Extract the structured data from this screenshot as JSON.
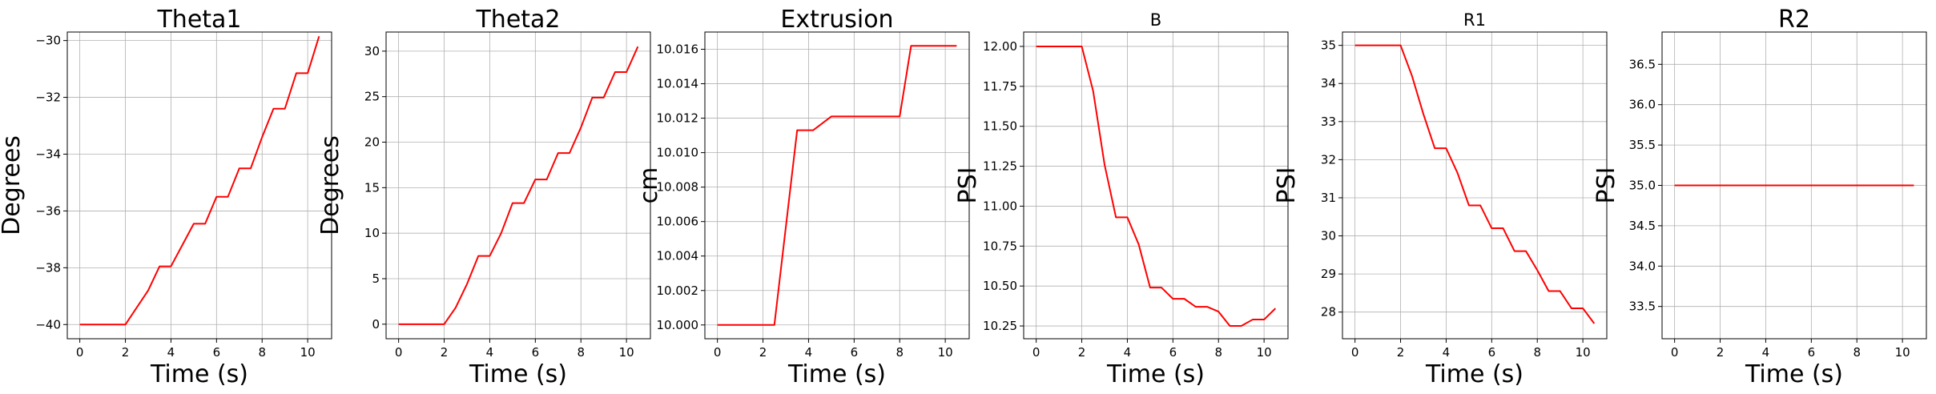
{
  "figure": {
    "background": "#ffffff",
    "line_color": "#ff0000",
    "grid": true
  },
  "chart_data": [
    {
      "type": "line",
      "title": "Theta1",
      "xlabel": "Time (s)",
      "ylabel": "Degrees",
      "xlim": [
        -0.55,
        11.05
      ],
      "ylim": [
        -40.5,
        -29.7
      ],
      "xticks": [
        0,
        2,
        4,
        6,
        8,
        10
      ],
      "xtick_labels": [
        "0",
        "2",
        "4",
        "6",
        "8",
        "10"
      ],
      "yticks": [
        -40,
        -38,
        -36,
        -34,
        -32,
        -30
      ],
      "ytick_labels": [
        "−40",
        "−38",
        "−36",
        "−34",
        "−32",
        "−30"
      ],
      "series": [
        {
          "color": "#ff0000",
          "x": [
            0,
            0.5,
            1,
            1.5,
            2,
            2.5,
            3,
            3.5,
            4,
            4.5,
            5,
            5.5,
            6,
            6.5,
            7,
            7.5,
            8,
            8.5,
            9,
            9.5,
            10,
            10.5
          ],
          "y": [
            -40,
            -40,
            -40,
            -40,
            -40,
            -39.4,
            -38.8,
            -37.95,
            -37.95,
            -37.2,
            -36.45,
            -36.45,
            -35.5,
            -35.5,
            -34.5,
            -34.5,
            -33.4,
            -32.4,
            -32.4,
            -31.15,
            -31.15,
            -29.85
          ]
        }
      ]
    },
    {
      "type": "line",
      "title": "Theta2",
      "xlabel": "Time (s)",
      "ylabel": "Degrees",
      "xlim": [
        -0.55,
        11.05
      ],
      "ylim": [
        -1.6,
        32.1
      ],
      "xticks": [
        0,
        2,
        4,
        6,
        8,
        10
      ],
      "xtick_labels": [
        "0",
        "2",
        "4",
        "6",
        "8",
        "10"
      ],
      "yticks": [
        0,
        5,
        10,
        15,
        20,
        25,
        30
      ],
      "ytick_labels": [
        "0",
        "5",
        "10",
        "15",
        "20",
        "25",
        "30"
      ],
      "series": [
        {
          "color": "#ff0000",
          "x": [
            0,
            0.5,
            1,
            1.5,
            2,
            2.5,
            3,
            3.5,
            4,
            4.5,
            5,
            5.5,
            6,
            6.5,
            7,
            7.5,
            8,
            8.5,
            9,
            9.5,
            10,
            10.5
          ],
          "y": [
            0,
            0,
            0,
            0,
            0,
            1.8,
            4.4,
            7.5,
            7.5,
            10,
            13.3,
            13.3,
            15.9,
            15.9,
            18.8,
            18.8,
            21.6,
            24.9,
            24.9,
            27.7,
            27.7,
            30.5
          ]
        }
      ]
    },
    {
      "type": "line",
      "title": "Extrusion",
      "xlabel": "Time (s)",
      "ylabel": "cm",
      "xlim": [
        -0.55,
        11.05
      ],
      "ylim": [
        9.9992,
        10.017
      ],
      "xticks": [
        0,
        2,
        4,
        6,
        8,
        10
      ],
      "xtick_labels": [
        "0",
        "2",
        "4",
        "6",
        "8",
        "10"
      ],
      "yticks": [
        10.0,
        10.002,
        10.004,
        10.006,
        10.008,
        10.01,
        10.012,
        10.014,
        10.016
      ],
      "ytick_labels": [
        "10.000",
        "10.002",
        "10.004",
        "10.006",
        "10.008",
        "10.010",
        "10.012",
        "10.014",
        "10.016"
      ],
      "series": [
        {
          "color": "#ff0000",
          "x": [
            0,
            2.5,
            3.5,
            4.2,
            4.6,
            5,
            8,
            8.5,
            10.5
          ],
          "y": [
            10.0,
            10.0,
            10.0113,
            10.0113,
            10.0117,
            10.0121,
            10.0121,
            10.0162,
            10.0162
          ]
        }
      ]
    },
    {
      "type": "line",
      "title": "B",
      "xlabel": "Time (s)",
      "ylabel": "PSI",
      "xlim": [
        -0.55,
        11.05
      ],
      "ylim": [
        10.17,
        12.09
      ],
      "xticks": [
        0,
        2,
        4,
        6,
        8,
        10
      ],
      "xtick_labels": [
        "0",
        "2",
        "4",
        "6",
        "8",
        "10"
      ],
      "yticks": [
        10.25,
        10.5,
        10.75,
        11.0,
        11.25,
        11.5,
        11.75,
        12.0
      ],
      "ytick_labels": [
        "10.25",
        "10.50",
        "10.75",
        "11.00",
        "11.25",
        "11.50",
        "11.75",
        "12.00"
      ],
      "series": [
        {
          "color": "#ff0000",
          "x": [
            0,
            2,
            2.5,
            3,
            3.5,
            4,
            4.5,
            5,
            5.5,
            6,
            6.5,
            7,
            7.5,
            8,
            8.5,
            9,
            9.5,
            10,
            10.5
          ],
          "y": [
            12,
            12,
            11.72,
            11.26,
            10.93,
            10.93,
            10.76,
            10.49,
            10.49,
            10.42,
            10.42,
            10.37,
            10.37,
            10.34,
            10.25,
            10.25,
            10.29,
            10.29,
            10.36
          ]
        }
      ]
    },
    {
      "type": "line",
      "title": "R1",
      "xlabel": "Time (s)",
      "ylabel": "PSI",
      "xlim": [
        -0.55,
        11.05
      ],
      "ylim": [
        27.3,
        35.35
      ],
      "xticks": [
        0,
        2,
        4,
        6,
        8,
        10
      ],
      "xtick_labels": [
        "0",
        "2",
        "4",
        "6",
        "8",
        "10"
      ],
      "yticks": [
        28,
        29,
        30,
        31,
        32,
        33,
        34,
        35
      ],
      "ytick_labels": [
        "28",
        "29",
        "30",
        "31",
        "32",
        "33",
        "34",
        "35"
      ],
      "series": [
        {
          "color": "#ff0000",
          "x": [
            0,
            2,
            2.5,
            3,
            3.5,
            4,
            4.5,
            5,
            5.5,
            6,
            6.5,
            7,
            7.5,
            8,
            8.5,
            9,
            9.5,
            10,
            10.5
          ],
          "y": [
            35,
            35,
            34.2,
            33.2,
            32.3,
            32.3,
            31.65,
            30.8,
            30.8,
            30.2,
            30.2,
            29.6,
            29.6,
            29.1,
            28.55,
            28.55,
            28.1,
            28.1,
            27.7
          ]
        }
      ]
    },
    {
      "type": "line",
      "title": "R2",
      "xlabel": "Time (s)",
      "ylabel": "PSI",
      "xlim": [
        -0.55,
        11.05
      ],
      "ylim": [
        33.1,
        36.9
      ],
      "xticks": [
        0,
        2,
        4,
        6,
        8,
        10
      ],
      "xtick_labels": [
        "0",
        "2",
        "4",
        "6",
        "8",
        "10"
      ],
      "yticks": [
        33.5,
        34.0,
        34.5,
        35.0,
        35.5,
        36.0,
        36.5
      ],
      "ytick_labels": [
        "33.5",
        "34.0",
        "34.5",
        "35.0",
        "35.5",
        "36.0",
        "36.5"
      ],
      "series": [
        {
          "color": "#ff0000",
          "x": [
            0,
            10.5
          ],
          "y": [
            35,
            35
          ]
        }
      ]
    }
  ]
}
